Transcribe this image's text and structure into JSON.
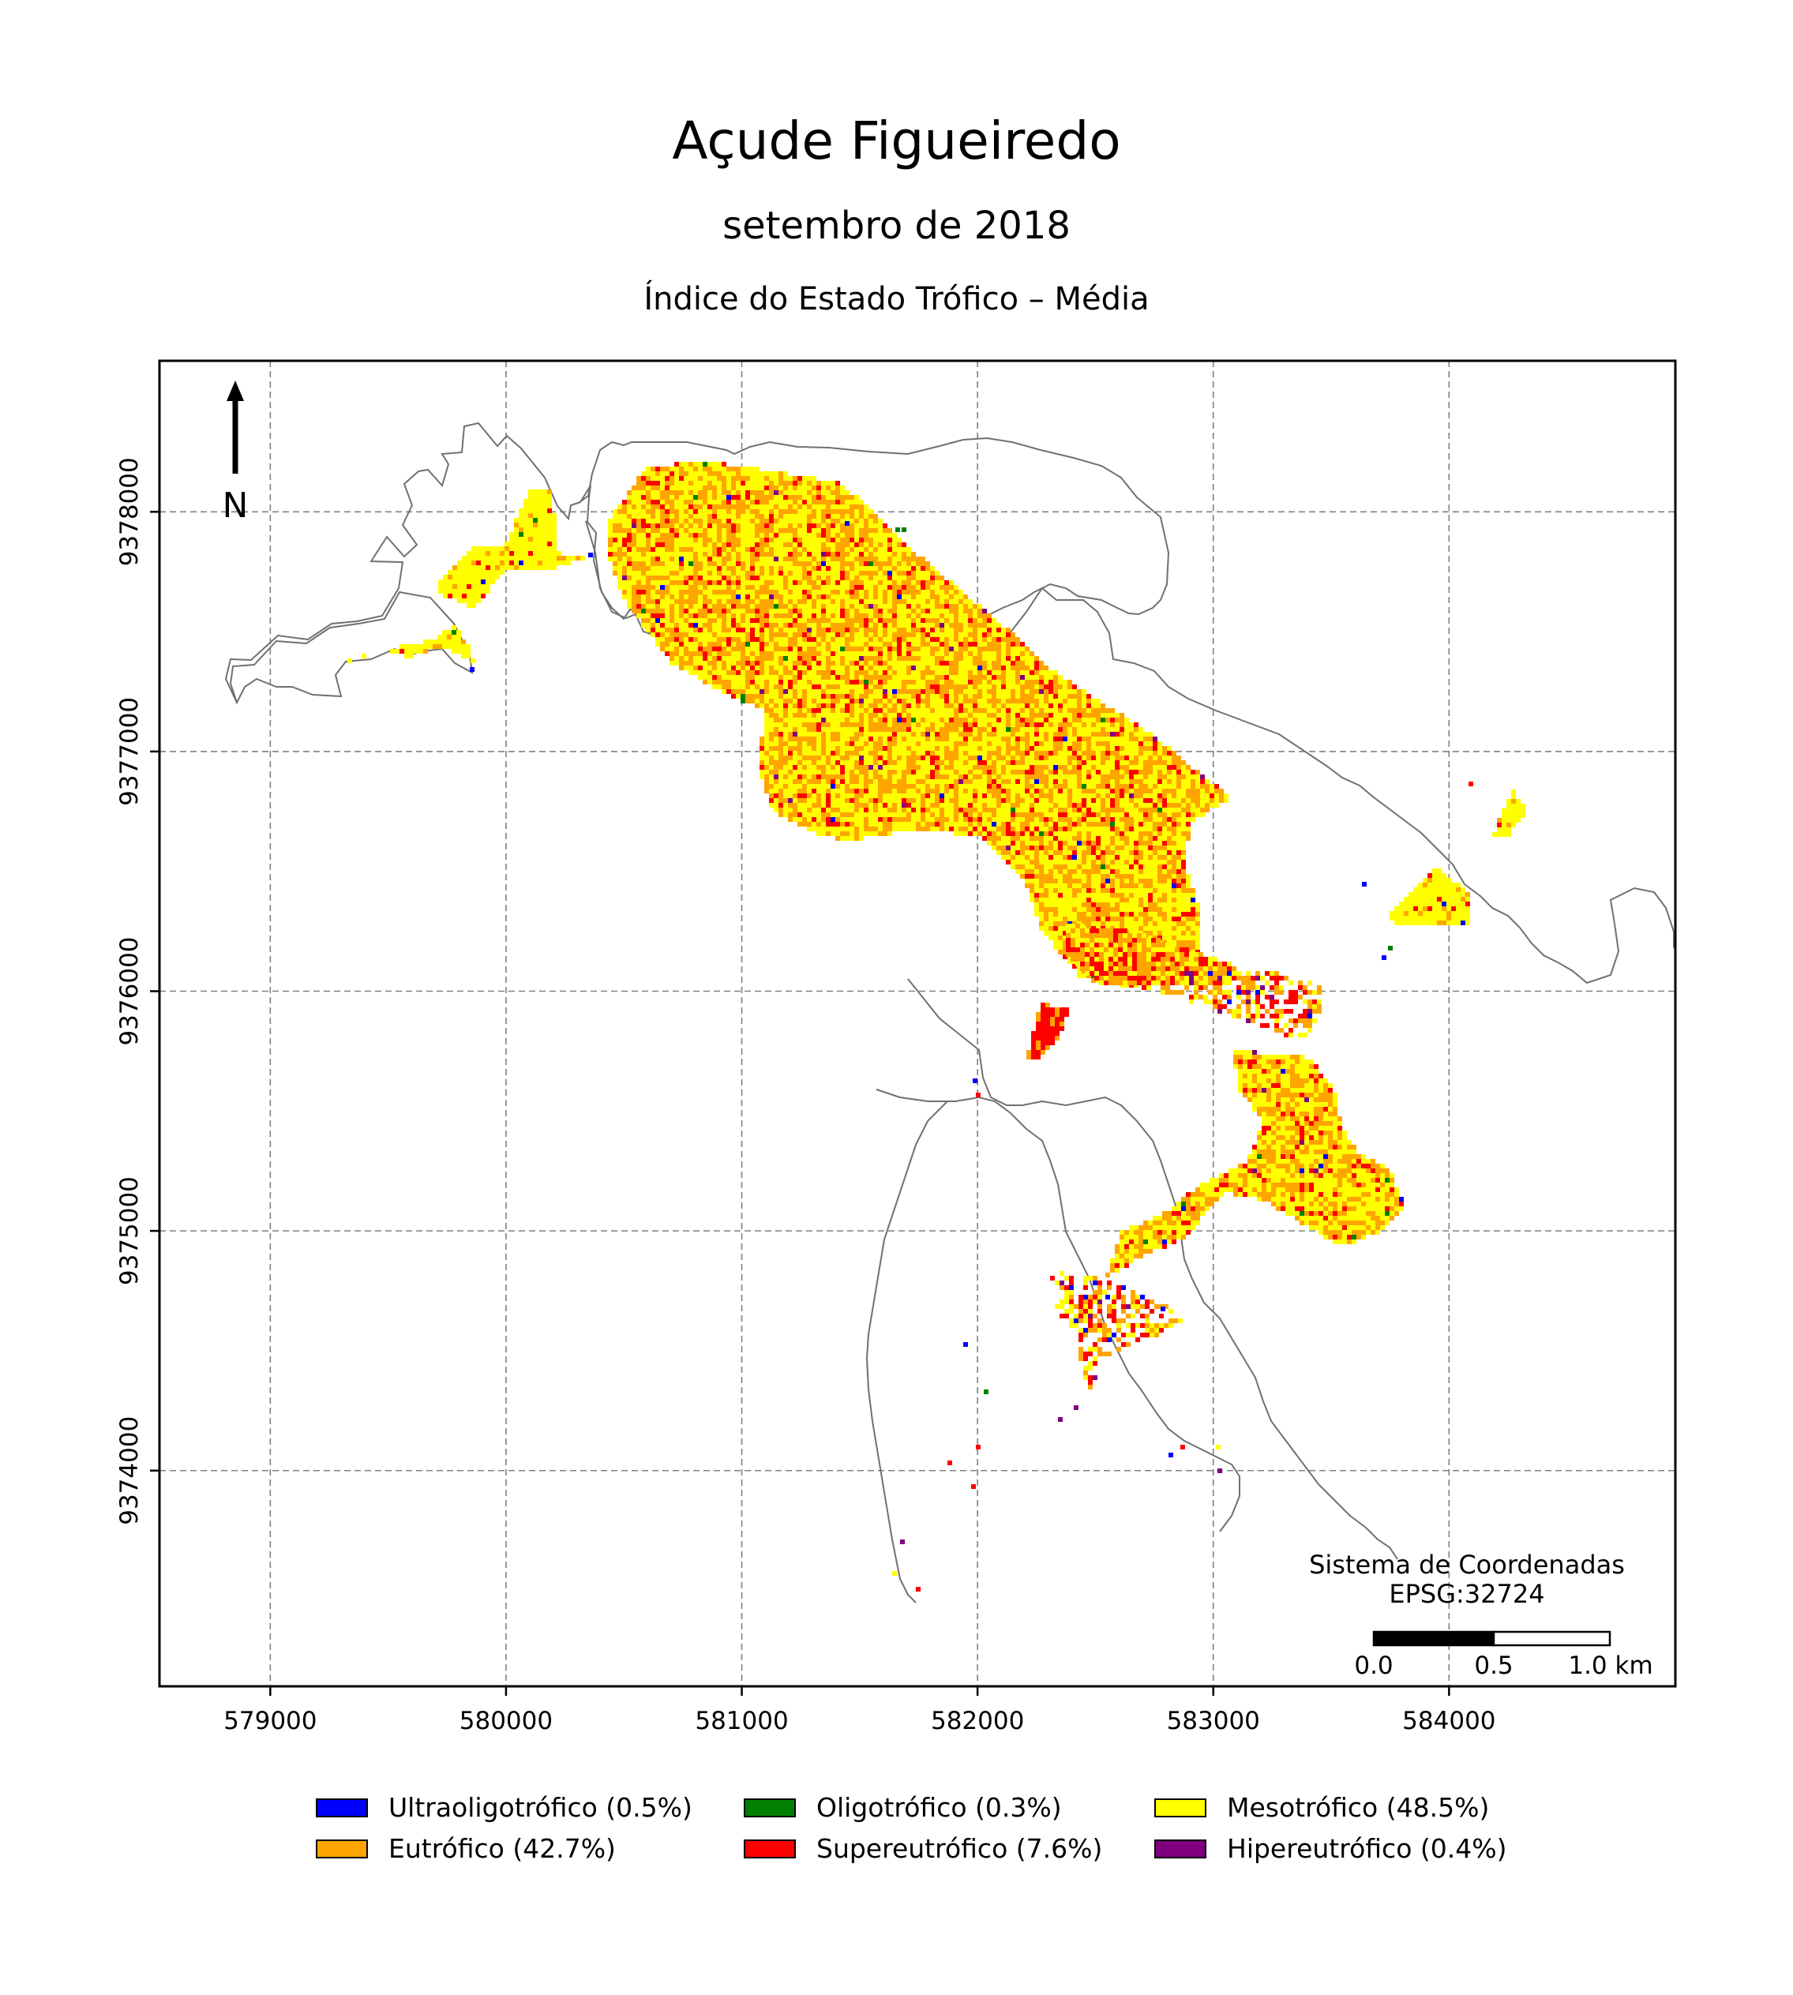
{
  "title": "Açude Figueiredo",
  "subtitle": "setembro de 2018",
  "map_title": "Índice do Estado Trófico – Média",
  "north_label": "N",
  "crs_label_line1": "Sistema de Coordenadas",
  "crs_label_line2": "EPSG:32724",
  "scale_bar": {
    "labels": [
      "0.0",
      "0.5",
      "1.0 km"
    ],
    "length_km": 1.0
  },
  "colors": {
    "ultraoligotrofico": "#0000ff",
    "oligotrofico": "#008000",
    "mesotrofico": "#ffff00",
    "eutrofico": "#ffa500",
    "supereutrofico": "#ff0000",
    "hipereutrofico": "#800080",
    "outline": "#707070",
    "grid": "#808080"
  },
  "legend": [
    {
      "label": "Ultraoligotrófico (0.5%)",
      "color": "#0000ff",
      "percent": 0.5
    },
    {
      "label": "Oligotrófico (0.3%)",
      "color": "#008000",
      "percent": 0.3
    },
    {
      "label": "Mesotrófico (48.5%)",
      "color": "#ffff00",
      "percent": 48.5
    },
    {
      "label": "Eutrófico (42.7%)",
      "color": "#ffa500",
      "percent": 42.7
    },
    {
      "label": "Supereutrófico (7.6%)",
      "color": "#ff0000",
      "percent": 7.6
    },
    {
      "label": "Hipereutrófico (0.4%)",
      "color": "#800080",
      "percent": 0.4
    }
  ],
  "chart_data": {
    "type": "heatmap",
    "title": "Índice do Estado Trófico – Média",
    "x_ticks": [
      579000,
      580000,
      581000,
      582000,
      583000,
      584000
    ],
    "y_ticks": [
      9374000,
      9375000,
      9376000,
      9377000,
      9378000
    ],
    "xlim": [
      578530,
      584960
    ],
    "ylim": [
      9373100,
      9378630
    ],
    "grid": true,
    "legend_position": "bottom",
    "classes": [
      "Ultraoligotrófico",
      "Oligotrófico",
      "Mesotrófico",
      "Eutrófico",
      "Supereutrófico",
      "Hipereutrófico"
    ],
    "class_share_percent": [
      0.5,
      0.3,
      48.5,
      42.7,
      7.6,
      0.4
    ]
  }
}
